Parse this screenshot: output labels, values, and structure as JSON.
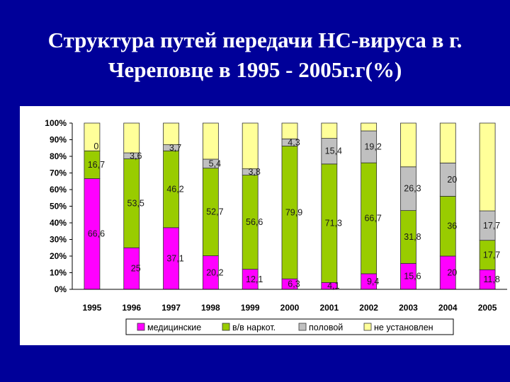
{
  "slide": {
    "title_line1": "Структура путей передачи НС-вируса в г.",
    "title_line2": "Череповце в 1995 - 2005г.г(%)"
  },
  "chart_data": {
    "type": "bar",
    "stacked": true,
    "percent": true,
    "categories": [
      "1995",
      "1996",
      "1997",
      "1998",
      "1999",
      "2000",
      "2001",
      "2002",
      "2003",
      "2004",
      "2005"
    ],
    "y_ticks": [
      "0%",
      "10%",
      "20%",
      "30%",
      "40%",
      "50%",
      "60%",
      "70%",
      "80%",
      "90%",
      "100%"
    ],
    "ylim": [
      0,
      100
    ],
    "legend_position": "bottom",
    "series": [
      {
        "name": "медицинские",
        "color": "#ff00ff",
        "values": [
          66.6,
          25,
          37.1,
          20.2,
          12.1,
          6.3,
          4.1,
          9.4,
          15.6,
          20,
          11.8
        ],
        "labels": [
          "66,6",
          "25",
          "37,1",
          "20,2",
          "12,1",
          "6,3",
          "4,1",
          "9,4",
          "15,6",
          "20",
          "11,8"
        ]
      },
      {
        "name": "в/в наркот.",
        "color": "#99cc00",
        "values": [
          16.7,
          53.5,
          46.2,
          52.7,
          56.6,
          79.9,
          71.3,
          66.7,
          31.8,
          36,
          17.7
        ],
        "labels": [
          "16,7",
          "53,5",
          "46,2",
          "52,7",
          "56,6",
          "79,9",
          "71,3",
          "66,7",
          "31,8",
          "36",
          "17,7"
        ]
      },
      {
        "name": "половой",
        "color": "#c0c0c0",
        "values": [
          0,
          3.6,
          3.7,
          5.4,
          3.8,
          4.3,
          15.4,
          19.2,
          26.3,
          20,
          17.7
        ],
        "labels": [
          "0",
          "3,6",
          "3,7",
          "5,4",
          "3,8",
          "4,3",
          "15,4",
          "19,2",
          "26,3",
          "20",
          "17,7"
        ]
      },
      {
        "name": "не установлен",
        "color": "#ffff99",
        "values": [
          16.7,
          17.9,
          13,
          21.7,
          27.5,
          9.5,
          9.2,
          4.7,
          26.3,
          24,
          52.8
        ],
        "labels": [
          "",
          "",
          "",
          "",
          "",
          "",
          "",
          "",
          "",
          "",
          ""
        ]
      }
    ]
  }
}
